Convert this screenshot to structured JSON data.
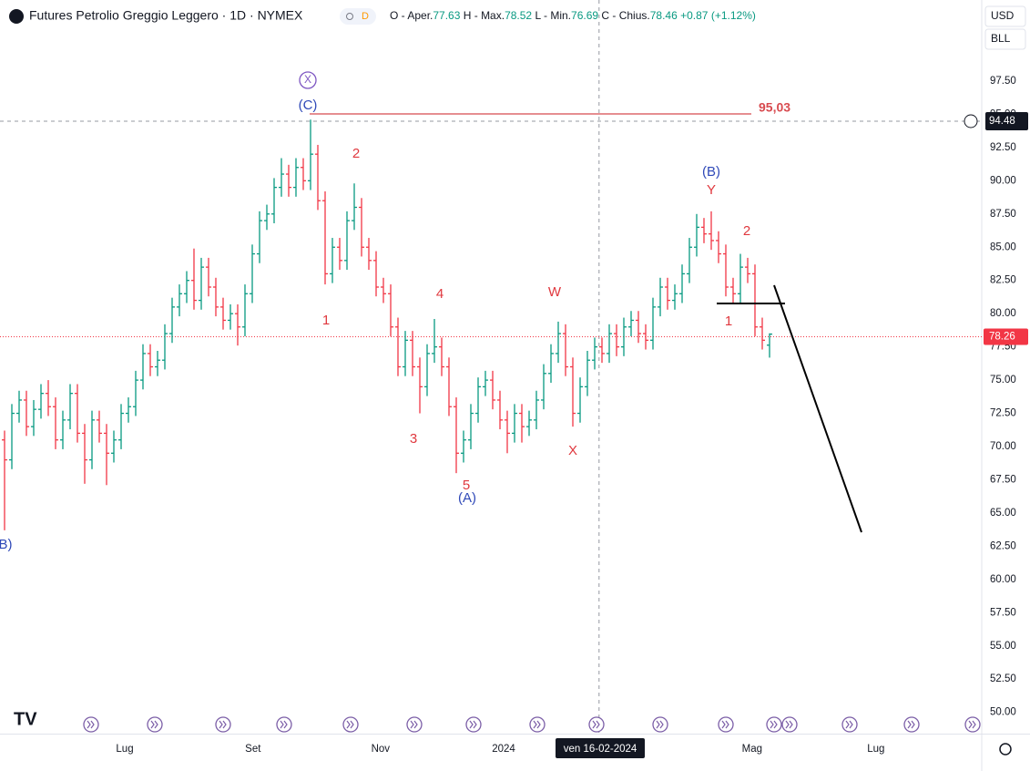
{
  "header": {
    "title": "Futures Petrolio Greggio Leggero · 1D · NYMEX",
    "badge": "D",
    "ohlc_labels": [
      "O - Aper.",
      "H - Max.",
      "L - Min.",
      "C - Chius."
    ],
    "change": "+0.87",
    "change_pct": "(+1.12%)"
  },
  "currency": "USD",
  "unit": "BLL",
  "chart_data": {
    "type": "ohlc",
    "ohlc": [
      [
        70.5,
        71.2,
        63.7,
        69
      ],
      [
        69,
        73.2,
        68.3,
        72.5
      ],
      [
        72.5,
        74.2,
        71.8,
        73.5
      ],
      [
        73.5,
        74.2,
        70.8,
        71.5
      ],
      [
        71.5,
        73.5,
        70.8,
        72.8
      ],
      [
        72.8,
        74.7,
        72.1,
        74
      ],
      [
        74,
        75,
        72.3,
        73
      ],
      [
        73,
        73.7,
        69.8,
        70.5
      ],
      [
        70.5,
        72.7,
        69.8,
        72
      ],
      [
        72,
        74.7,
        71.3,
        74
      ],
      [
        74,
        74.7,
        70.3,
        71
      ],
      [
        71,
        71.7,
        67.2,
        69
      ],
      [
        69,
        72.7,
        68.3,
        72
      ],
      [
        72,
        72.7,
        70.3,
        71
      ],
      [
        71,
        71.7,
        67.1,
        69.5
      ],
      [
        69.5,
        71.2,
        68.8,
        70.5
      ],
      [
        70.5,
        73.2,
        69.8,
        72.5
      ],
      [
        72.5,
        73.7,
        71.8,
        73
      ],
      [
        73,
        75.7,
        72.3,
        75
      ],
      [
        75,
        77.7,
        74.3,
        77
      ],
      [
        77,
        77.7,
        75.3,
        76
      ],
      [
        76,
        77.2,
        75.3,
        76.5
      ],
      [
        76.5,
        79.2,
        75.8,
        78.5
      ],
      [
        78.5,
        81.2,
        77.8,
        80.5
      ],
      [
        80.5,
        82.2,
        79.8,
        81.5
      ],
      [
        81.5,
        83.2,
        80.8,
        82.5
      ],
      [
        82.5,
        84.9,
        80.3,
        81
      ],
      [
        81,
        84.2,
        80.3,
        83.5
      ],
      [
        83.5,
        84.2,
        81.3,
        82
      ],
      [
        82,
        82.7,
        79.8,
        80.5
      ],
      [
        80.5,
        81.2,
        78.8,
        79.5
      ],
      [
        79.5,
        80.7,
        78.8,
        80
      ],
      [
        80,
        80.7,
        77.6,
        79
      ],
      [
        79,
        82.2,
        78.3,
        81.5
      ],
      [
        81.5,
        85.2,
        80.8,
        84.5
      ],
      [
        84.5,
        87.7,
        83.8,
        87
      ],
      [
        87,
        88.2,
        86.3,
        87.5
      ],
      [
        87.5,
        90.2,
        86.8,
        89.5
      ],
      [
        89.5,
        91.7,
        88.8,
        90.5
      ],
      [
        90.5,
        91.2,
        88.8,
        89.5
      ],
      [
        89.5,
        91.7,
        88.8,
        91
      ],
      [
        91,
        91.7,
        89.3,
        90
      ],
      [
        90,
        94.6,
        89.3,
        92
      ],
      [
        92,
        92.7,
        87.8,
        88.5
      ],
      [
        88.5,
        89.2,
        82.2,
        83
      ],
      [
        83,
        85.7,
        82.3,
        85
      ],
      [
        85,
        85.7,
        83.3,
        84
      ],
      [
        84,
        87.7,
        83.3,
        87
      ],
      [
        87,
        89.8,
        86.3,
        88
      ],
      [
        88,
        88.7,
        84.3,
        85
      ],
      [
        85,
        85.7,
        83.3,
        84
      ],
      [
        84,
        84.7,
        81.3,
        82
      ],
      [
        82,
        82.7,
        80.8,
        81.5
      ],
      [
        81.5,
        82.2,
        78.3,
        79
      ],
      [
        79,
        79.7,
        75.3,
        76
      ],
      [
        76,
        78.7,
        75.3,
        78
      ],
      [
        78,
        78.7,
        75.3,
        76
      ],
      [
        76,
        76.7,
        72.5,
        74.5
      ],
      [
        74.5,
        77.7,
        73.8,
        77
      ],
      [
        77,
        79.6,
        76.3,
        77.5
      ],
      [
        77.5,
        78.2,
        75.3,
        76
      ],
      [
        76,
        76.7,
        72.3,
        73
      ],
      [
        73,
        73.7,
        68,
        69.5
      ],
      [
        69.5,
        71.2,
        68.8,
        70.5
      ],
      [
        70.5,
        73.2,
        69.8,
        72.5
      ],
      [
        72.5,
        75.2,
        71.8,
        74.5
      ],
      [
        74.5,
        75.7,
        73.8,
        75
      ],
      [
        75,
        75.7,
        72.8,
        73.5
      ],
      [
        73.5,
        74.2,
        71.3,
        72
      ],
      [
        72,
        72.7,
        69.5,
        71
      ],
      [
        71,
        73.2,
        70.3,
        72.5
      ],
      [
        72.5,
        73.2,
        70.3,
        71.5
      ],
      [
        71.5,
        72.7,
        70.8,
        72
      ],
      [
        72,
        74.2,
        71.3,
        73.5
      ],
      [
        73.5,
        76.2,
        72.8,
        75.5
      ],
      [
        75.5,
        77.7,
        74.8,
        77
      ],
      [
        77,
        79.4,
        76.3,
        78.5
      ],
      [
        78.5,
        79.2,
        75.3,
        76
      ],
      [
        76,
        76.7,
        71.5,
        72.5
      ],
      [
        72.5,
        75.2,
        71.8,
        74.5
      ],
      [
        74.5,
        77.2,
        73.8,
        76.5
      ],
      [
        76.5,
        78.2,
        75.8,
        77.5
      ],
      [
        77.5,
        78.2,
        76.3,
        77
      ],
      [
        77,
        79.2,
        76.3,
        78.5
      ],
      [
        78.5,
        79.2,
        76.8,
        77.5
      ],
      [
        77.5,
        79.7,
        76.8,
        79
      ],
      [
        79,
        80.2,
        78.3,
        79.5
      ],
      [
        79.5,
        80.2,
        77.8,
        78.5
      ],
      [
        78.5,
        79.2,
        77.3,
        78
      ],
      [
        78,
        81.2,
        77.3,
        80.5
      ],
      [
        80.5,
        82.7,
        79.8,
        82
      ],
      [
        82,
        82.7,
        80.3,
        81
      ],
      [
        81,
        82.2,
        80.3,
        81.5
      ],
      [
        81.5,
        83.7,
        80.8,
        83
      ],
      [
        83,
        85.7,
        82.3,
        85
      ],
      [
        85,
        87.5,
        84.3,
        86.5
      ],
      [
        86.5,
        87.2,
        85.3,
        86
      ],
      [
        86,
        87.7,
        84.8,
        85.5
      ],
      [
        85.5,
        86.2,
        83.8,
        84.5
      ],
      [
        84.5,
        85.2,
        81.3,
        82
      ],
      [
        82,
        82.7,
        80.8,
        81.5
      ],
      [
        81.5,
        84.5,
        80.8,
        83.5
      ],
      [
        83.5,
        84.2,
        82.3,
        83
      ],
      [
        83,
        83.7,
        78.3,
        79
      ],
      [
        79,
        79.7,
        77.3,
        78
      ],
      [
        77.63,
        78.52,
        76.69,
        78.46
      ]
    ],
    "up_color": "#089981",
    "down_color": "#f23645",
    "xlim": [
      -0.625,
      134.125
    ],
    "xticks": [
      {
        "value": 16.5,
        "label": "Lug"
      },
      {
        "value": 34.1,
        "label": "Set"
      },
      {
        "value": 51.6,
        "label": "Nov"
      },
      {
        "value": 68.5,
        "label": "2024"
      },
      {
        "value": 102.6,
        "label": "Mag"
      },
      {
        "value": 119.6,
        "label": "Lug"
      }
    ],
    "ylim": [
      48.4,
      103.6
    ],
    "yticks": [
      {
        "value": 50,
        "label": "50.00"
      },
      {
        "value": 52.5,
        "label": "52.50"
      },
      {
        "value": 55,
        "label": "55.00"
      },
      {
        "value": 57.5,
        "label": "57.50"
      },
      {
        "value": 60,
        "label": "60.00"
      },
      {
        "value": 62.5,
        "label": "62.50"
      },
      {
        "value": 65,
        "label": "65.00"
      },
      {
        "value": 67.5,
        "label": "67.50"
      },
      {
        "value": 70,
        "label": "70.00"
      },
      {
        "value": 72.5,
        "label": "72.50"
      },
      {
        "value": 75,
        "label": "75.00"
      },
      {
        "value": 77.5,
        "label": "77.50"
      },
      {
        "value": 80,
        "label": "80.00"
      },
      {
        "value": 82.5,
        "label": "82.50"
      },
      {
        "value": 85,
        "label": "85.00"
      },
      {
        "value": 87.5,
        "label": "87.50"
      },
      {
        "value": 90,
        "label": "90.00"
      },
      {
        "value": 92.5,
        "label": "92.50"
      },
      {
        "value": 95,
        "label": "95.00"
      },
      {
        "value": 97.5,
        "label": "97.50"
      }
    ],
    "grid": false,
    "crosshair": {
      "x": 81.6,
      "x_label": "ven 16-02-2024",
      "y": 94.48
    },
    "last_price": 78.26,
    "level": {
      "value": 95.03,
      "label": "95,03"
    },
    "annotations": [
      {
        "text": "X",
        "color": "#7e57c2"
      },
      {
        "text": "(C)",
        "color": "#2f49b8"
      },
      {
        "text": "2",
        "color": "#e0383e"
      },
      {
        "text": "1",
        "color": "#e0383e"
      },
      {
        "text": "4",
        "color": "#e0383e"
      },
      {
        "text": "3",
        "color": "#e0383e"
      },
      {
        "text": "5",
        "color": "#e0383e"
      },
      {
        "text": "(A)",
        "color": "#2f49b8"
      },
      {
        "text": "W",
        "color": "#e0383e"
      },
      {
        "text": "X",
        "color": "#e0383e"
      },
      {
        "text": "(B)",
        "color": "#2f49b8"
      },
      {
        "text": "Y",
        "color": "#e0383e"
      },
      {
        "text": "2",
        "color": "#e0383e"
      },
      {
        "text": "1",
        "color": "#e0383e"
      },
      {
        "text": "B)",
        "color": "#2f49b8"
      }
    ]
  }
}
